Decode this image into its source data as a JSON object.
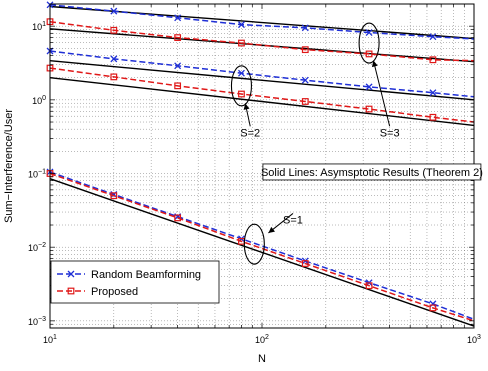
{
  "chart_data": {
    "type": "line",
    "xlabel": "N",
    "ylabel": "Sum−Interference/User",
    "xscale": "log",
    "yscale": "log",
    "xlim": [
      10,
      1000
    ],
    "ylim": [
      0.0008,
      20
    ],
    "grid": true,
    "x_ticks": [
      {
        "value": 10,
        "mantissa": "10",
        "exp": "1"
      },
      {
        "value": 100,
        "mantissa": "10",
        "exp": "2"
      },
      {
        "value": 1000,
        "mantissa": "10",
        "exp": "3"
      }
    ],
    "y_ticks": [
      {
        "value": 0.001,
        "mantissa": "10",
        "exp": "−3"
      },
      {
        "value": 0.01,
        "mantissa": "10",
        "exp": "−2"
      },
      {
        "value": 0.1,
        "mantissa": "10",
        "exp": "−1"
      },
      {
        "value": 1,
        "mantissa": "10",
        "exp": "0"
      },
      {
        "value": 10,
        "mantissa": "10",
        "exp": "1"
      }
    ],
    "legend_position": "bottom-left",
    "legend": [
      {
        "label": "Random Beamforming",
        "series_type": "random"
      },
      {
        "label": "Proposed",
        "series_type": "proposed"
      }
    ],
    "series": [
      {
        "kind": "asymptotic",
        "group": "S=1",
        "x": [
          10,
          1000
        ],
        "y": [
          0.085,
          0.00085
        ]
      },
      {
        "kind": "random",
        "group": "S=1",
        "x": [
          10,
          20,
          40,
          80,
          160,
          320,
          640,
          1000
        ],
        "y": [
          0.105,
          0.052,
          0.026,
          0.013,
          0.0065,
          0.0033,
          0.0017,
          0.00105
        ]
      },
      {
        "kind": "proposed",
        "group": "S=1",
        "x": [
          10,
          20,
          40,
          80,
          160,
          320,
          640,
          1000
        ],
        "y": [
          0.1,
          0.05,
          0.025,
          0.012,
          0.006,
          0.003,
          0.0015,
          0.001
        ]
      },
      {
        "kind": "asymptotic",
        "group": "S=2",
        "x": [
          10,
          1000
        ],
        "y": [
          3.4,
          1.0
        ]
      },
      {
        "kind": "random",
        "group": "S=2",
        "x": [
          10,
          20,
          40,
          80,
          160,
          320,
          640,
          1000
        ],
        "y": [
          4.6,
          3.6,
          2.9,
          2.3,
          1.85,
          1.5,
          1.25,
          1.1
        ]
      },
      {
        "kind": "asymptotic",
        "group": "S=2",
        "x": [
          10,
          1000
        ],
        "y": [
          2.0,
          0.45
        ]
      },
      {
        "kind": "proposed",
        "group": "S=2",
        "x": [
          10,
          20,
          40,
          80,
          160,
          320,
          640,
          1000
        ],
        "y": [
          2.7,
          2.05,
          1.55,
          1.2,
          0.95,
          0.75,
          0.58,
          0.5
        ]
      },
      {
        "kind": "asymptotic",
        "group": "S=3",
        "x": [
          10,
          1000
        ],
        "y": [
          18.5,
          6.8
        ]
      },
      {
        "kind": "random",
        "group": "S=3",
        "x": [
          10,
          20,
          40,
          80,
          160,
          320,
          640,
          1000
        ],
        "y": [
          19.5,
          16,
          13,
          10.5,
          9.5,
          8.2,
          7.2,
          6.7
        ]
      },
      {
        "kind": "asymptotic",
        "group": "S=3",
        "x": [
          10,
          1000
        ],
        "y": [
          9.2,
          3.3
        ]
      },
      {
        "kind": "proposed",
        "group": "S=3",
        "x": [
          10,
          20,
          40,
          80,
          160,
          320,
          640,
          1000
        ],
        "y": [
          11.5,
          8.8,
          7.0,
          5.9,
          4.8,
          4.2,
          3.5,
          3.4
        ]
      }
    ],
    "annotations": [
      {
        "text": "S=3",
        "ellipse": {
          "cx": 320,
          "cy": 5.9
        },
        "arrow_to": {
          "x": 320,
          "y": 5.9
        },
        "text_at": {
          "x": 400,
          "y": 0.32
        }
      },
      {
        "text": "S=2",
        "ellipse": {
          "cx": 80,
          "cy": 1.55
        },
        "arrow_to": {
          "x": 80,
          "y": 1.55
        },
        "text_at": {
          "x": 88,
          "y": 0.32
        }
      },
      {
        "text": "S=1",
        "ellipse": {
          "cx": 92,
          "cy": 0.011
        },
        "arrow_to": {
          "x": 92,
          "y": 0.011
        },
        "text_at": {
          "x": 140,
          "y": 0.021
        }
      }
    ],
    "box_note": {
      "text": "Solid Lines: Asymsptotic Results (Theorem 2)",
      "x": 330,
      "y": 0.105
    }
  }
}
